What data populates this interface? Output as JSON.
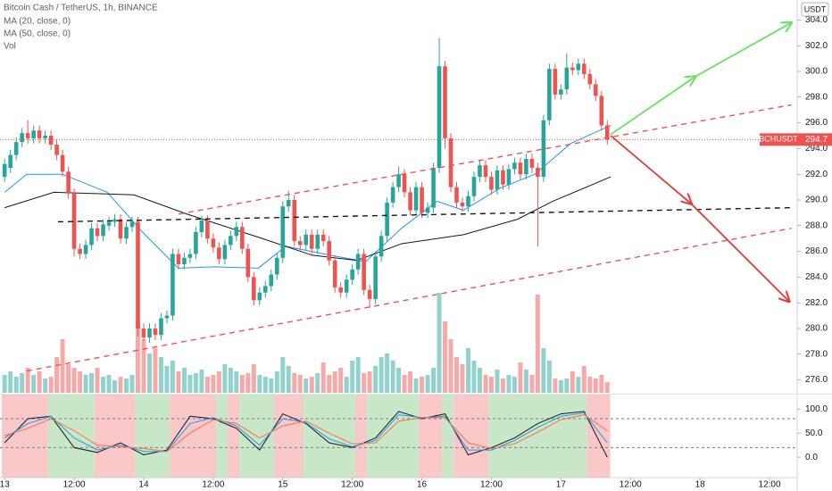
{
  "chart_data": {
    "type": "candlestick",
    "title": "Bitcoin Cash / TetherUS, 1h, BINANCE",
    "currency": "USDT",
    "symbol_label": "BCHUSDT",
    "last_price": 294.7,
    "volume_label": "Vol",
    "up_color": "#26a69a",
    "down_color": "#ef5350",
    "xlim": [
      -0.8,
      136
    ],
    "ylim": [
      275,
      305
    ],
    "vlim": [
      0,
      100
    ],
    "xticks": [
      {
        "value": 0,
        "label": "13"
      },
      {
        "value": 12,
        "label": "12:00"
      },
      {
        "value": 24,
        "label": "14"
      },
      {
        "value": 36,
        "label": "12:00"
      },
      {
        "value": 48,
        "label": "15"
      },
      {
        "value": 60,
        "label": "12:00"
      },
      {
        "value": 72,
        "label": "16"
      },
      {
        "value": 84,
        "label": "12:00"
      },
      {
        "value": 96,
        "label": "17"
      },
      {
        "value": 108,
        "label": "12:00"
      },
      {
        "value": 120,
        "label": "18"
      },
      {
        "value": 132,
        "label": "12:00"
      }
    ],
    "yticks": [
      {
        "value": 276,
        "label": "276.0"
      },
      {
        "value": 278,
        "label": "278.0"
      },
      {
        "value": 280,
        "label": "280.0"
      },
      {
        "value": 282,
        "label": "282.0"
      },
      {
        "value": 284,
        "label": "284.0"
      },
      {
        "value": 286,
        "label": "286.0"
      },
      {
        "value": 288,
        "label": "288.0"
      },
      {
        "value": 290,
        "label": "290.0"
      },
      {
        "value": 292,
        "label": "292.0"
      },
      {
        "value": 294,
        "label": "294.0"
      },
      {
        "value": 296,
        "label": "296.0"
      },
      {
        "value": 298,
        "label": "298.0"
      },
      {
        "value": 300,
        "label": "300.0"
      },
      {
        "value": 302,
        "label": "302.0"
      },
      {
        "value": 304,
        "label": "304.0"
      }
    ],
    "open": [
      291.8,
      292.5,
      293.5,
      294.5,
      295.2,
      294.8,
      295.4,
      294.8,
      295.0,
      294.3,
      293.5,
      292.2,
      290.5,
      286.2,
      285.8,
      286.5,
      287.8,
      287.2,
      288.0,
      288.3,
      288.5,
      287.0,
      287.9,
      288.3,
      280.0,
      279.3,
      280.0,
      279.5,
      280.8,
      281.0,
      285.8,
      285.0,
      285.5,
      285.8,
      287.5,
      288.4,
      287.0,
      286.3,
      285.4,
      286.5,
      287.2,
      287.9,
      286.2,
      284.0,
      282.2,
      282.8,
      283.3,
      284.2,
      285.5,
      289.5,
      290.0,
      286.8,
      286.5,
      287.3,
      286.2,
      287.3,
      286.8,
      285.3,
      283.2,
      282.8,
      283.8,
      284.6,
      285.8,
      283.0,
      282.3,
      285.6,
      287.2,
      289.8,
      291.0,
      292.0,
      290.6,
      289.2,
      291.0,
      289.0,
      289.4,
      292.5,
      300.4,
      294.8,
      291.0,
      289.8,
      289.5,
      290.3,
      291.8,
      292.7,
      291.8,
      290.8,
      292.3,
      291.2,
      292.4,
      292.9,
      292.0,
      293.2,
      292.5,
      291.8,
      296.2,
      300.2,
      298.2,
      298.6,
      300.3,
      300.1,
      300.6,
      299.8,
      299.0,
      298.1,
      295.8
    ],
    "high": [
      293.2,
      293.9,
      294.9,
      295.6,
      296.2,
      295.8,
      295.8,
      295.4,
      295.4,
      294.7,
      293.9,
      292.6,
      290.9,
      286.6,
      286.9,
      288.2,
      288.2,
      288.5,
      288.7,
      288.9,
      288.9,
      288.3,
      288.7,
      288.7,
      280.4,
      280.4,
      280.4,
      281.2,
      281.4,
      286.2,
      286.2,
      285.9,
      286.2,
      287.9,
      288.8,
      288.8,
      287.4,
      286.7,
      286.9,
      287.6,
      288.3,
      288.3,
      286.6,
      284.4,
      283.2,
      283.7,
      284.6,
      285.9,
      289.9,
      290.7,
      290.4,
      287.2,
      287.7,
      287.7,
      287.7,
      287.7,
      287.2,
      285.7,
      283.6,
      284.2,
      285.0,
      286.2,
      286.2,
      283.4,
      286.0,
      287.6,
      290.2,
      291.4,
      292.6,
      292.4,
      291.0,
      291.4,
      291.4,
      289.8,
      292.9,
      302.6,
      300.8,
      295.2,
      291.4,
      290.2,
      290.7,
      292.2,
      293.1,
      293.1,
      292.2,
      292.7,
      292.7,
      292.8,
      293.3,
      293.3,
      293.6,
      293.6,
      292.9,
      296.6,
      300.6,
      300.6,
      299.0,
      301.4,
      300.7,
      301.0,
      301.0,
      300.2,
      299.4,
      298.5,
      296.2
    ],
    "low": [
      291.4,
      292.1,
      293.1,
      294.1,
      294.4,
      294.4,
      294.4,
      294.4,
      293.9,
      293.1,
      291.8,
      290.1,
      285.6,
      285.4,
      285.4,
      286.1,
      286.8,
      286.8,
      287.6,
      287.9,
      286.6,
      286.6,
      287.5,
      279.4,
      279.0,
      278.9,
      279.1,
      279.1,
      280.4,
      280.6,
      284.6,
      284.6,
      285.1,
      285.4,
      287.1,
      286.6,
      285.9,
      285.0,
      285.0,
      286.1,
      286.8,
      285.8,
      283.6,
      281.8,
      281.8,
      282.4,
      282.9,
      283.8,
      285.1,
      289.1,
      286.4,
      286.1,
      286.1,
      285.8,
      285.8,
      286.4,
      284.9,
      282.8,
      282.4,
      282.4,
      283.4,
      284.2,
      282.6,
      281.6,
      281.9,
      285.2,
      286.8,
      289.4,
      290.6,
      290.2,
      288.8,
      288.8,
      288.6,
      288.6,
      289.0,
      292.1,
      294.0,
      290.6,
      289.4,
      289.1,
      289.1,
      289.9,
      291.4,
      291.4,
      290.4,
      290.4,
      290.8,
      290.8,
      292.0,
      291.6,
      291.6,
      292.1,
      286.4,
      291.4,
      295.8,
      297.8,
      297.8,
      298.2,
      299.7,
      299.7,
      299.4,
      298.6,
      297.7,
      295.4,
      294.3
    ],
    "close": [
      292.8,
      293.5,
      294.5,
      295.2,
      294.8,
      295.4,
      294.8,
      295.0,
      294.3,
      293.5,
      292.2,
      290.5,
      286.2,
      285.8,
      286.5,
      287.8,
      287.2,
      288.1,
      288.3,
      288.5,
      287.0,
      287.9,
      288.3,
      280.0,
      279.3,
      280.0,
      279.5,
      280.8,
      281.0,
      285.8,
      285.0,
      285.5,
      285.8,
      287.5,
      288.4,
      287.0,
      286.3,
      285.4,
      286.5,
      287.2,
      287.9,
      286.2,
      284.0,
      282.2,
      282.8,
      283.3,
      284.2,
      285.5,
      289.5,
      290.0,
      286.8,
      286.5,
      287.3,
      286.2,
      287.3,
      286.8,
      285.3,
      283.2,
      282.8,
      283.8,
      284.6,
      285.8,
      283.0,
      282.3,
      285.6,
      287.2,
      289.8,
      291.0,
      292.0,
      290.6,
      289.2,
      291.0,
      289.0,
      289.4,
      292.5,
      300.4,
      294.8,
      291.0,
      289.8,
      289.5,
      290.3,
      291.8,
      292.7,
      291.8,
      290.8,
      292.3,
      291.2,
      292.4,
      292.9,
      292.0,
      293.2,
      292.5,
      291.8,
      296.2,
      300.2,
      298.2,
      298.6,
      300.3,
      300.1,
      300.6,
      299.8,
      299.0,
      298.1,
      295.8,
      294.7
    ],
    "volume": [
      10,
      12,
      9,
      11,
      14,
      10,
      12,
      8,
      9,
      20,
      30,
      16,
      14,
      12,
      10,
      11,
      14,
      9,
      10,
      7,
      9,
      8,
      10,
      40,
      30,
      22,
      25,
      20,
      15,
      18,
      12,
      14,
      10,
      11,
      13,
      9,
      10,
      12,
      16,
      14,
      12,
      10,
      11,
      16,
      10,
      9,
      8,
      12,
      20,
      15,
      11,
      10,
      8,
      9,
      11,
      17,
      10,
      12,
      14,
      9,
      18,
      20,
      11,
      12,
      15,
      20,
      22,
      18,
      14,
      10,
      12,
      8,
      9,
      10,
      14,
      56,
      40,
      30,
      20,
      16,
      25,
      18,
      14,
      10,
      9,
      13,
      8,
      10,
      9,
      17,
      13,
      10,
      55,
      25,
      18,
      8,
      7,
      8,
      12,
      9,
      15,
      9,
      8,
      10,
      6
    ],
    "series": [
      {
        "name": "MA (20, close, 0)",
        "color": "#2196f3",
        "x": [
          0,
          3.8,
          10,
          17.7,
          23.8,
          30,
          36.2,
          43.8,
          48.5,
          56.2,
          62.3,
          68.5,
          74.6,
          79.2,
          85.4,
          91.5,
          97.7,
          104.6
        ],
        "values": [
          290.6,
          292,
          292,
          290.6,
          287.5,
          284.7,
          284.8,
          284.7,
          286.4,
          285.7,
          285.2,
          287.8,
          289.9,
          289.2,
          290.9,
          292,
          294.4,
          295.8
        ]
      },
      {
        "name": "MA (50, close, 0)",
        "color": "#131722",
        "x": [
          0,
          8.5,
          22.3,
          31.5,
          43.8,
          53.1,
          60.8,
          68.5,
          79.2,
          88.5,
          94.6,
          104.6
        ],
        "values": [
          289.4,
          290.6,
          290.4,
          288.9,
          287.1,
          285.7,
          285.3,
          286.6,
          287.3,
          288.5,
          289.9,
          291.8
        ]
      }
    ],
    "drawings": [
      {
        "color": "#ef5350",
        "dash": true,
        "x": [
          30,
          135.8
        ],
        "values": [
          288.9,
          297.4
        ]
      },
      {
        "color": "#ef5350",
        "dash": true,
        "x": [
          3.8,
          135.8
        ],
        "values": [
          276.7,
          287.8
        ]
      },
      {
        "color": "#131722",
        "dash": true,
        "x": [
          9.2,
          135.8
        ],
        "values": [
          288.3,
          289.4
        ]
      },
      {
        "color": "#66e35e",
        "dash": false,
        "arrow": true,
        "x": [
          104.6,
          119.2,
          135.8
        ],
        "values": [
          295.1,
          299.6,
          303.8
        ]
      },
      {
        "color": "#e53935",
        "dash": false,
        "arrow": true,
        "x": [
          104.6,
          118.5,
          135.4
        ],
        "values": [
          295.0,
          289.7,
          282.1
        ]
      }
    ],
    "oscillator": {
      "ylim": [
        -40,
        130
      ],
      "yticks": [
        {
          "value": 100,
          "label": "100.0"
        },
        {
          "value": 50,
          "label": "50.0"
        },
        {
          "value": 0,
          "label": "0.0"
        }
      ],
      "bands": [
        80,
        20
      ],
      "zones": [
        {
          "start": -0.5,
          "end": 7.5,
          "color": "#f7b6b6"
        },
        {
          "start": 7.5,
          "end": 15.5,
          "color": "#b5dfb3"
        },
        {
          "start": 15.5,
          "end": 22.5,
          "color": "#f7b6b6"
        },
        {
          "start": 22.5,
          "end": 28.5,
          "color": "#b5dfb3"
        },
        {
          "start": 28.5,
          "end": 36.5,
          "color": "#f7b6b6"
        },
        {
          "start": 36.5,
          "end": 38.5,
          "color": "#b5dfb3"
        },
        {
          "start": 38.5,
          "end": 40.5,
          "color": "#f7b6b6"
        },
        {
          "start": 40.5,
          "end": 46.5,
          "color": "#b5dfb3"
        },
        {
          "start": 46.5,
          "end": 51.5,
          "color": "#f7b6b6"
        },
        {
          "start": 51.5,
          "end": 60.5,
          "color": "#b5dfb3"
        },
        {
          "start": 60.5,
          "end": 62.5,
          "color": "#f7b6b6"
        },
        {
          "start": 62.5,
          "end": 71.5,
          "color": "#b5dfb3"
        },
        {
          "start": 71.5,
          "end": 75.5,
          "color": "#f7b6b6"
        },
        {
          "start": 75.5,
          "end": 77.5,
          "color": "#b5dfb3"
        },
        {
          "start": 77.5,
          "end": 83.5,
          "color": "#f7b6b6"
        },
        {
          "start": 83.5,
          "end": 100.5,
          "color": "#b5dfb3"
        },
        {
          "start": 100.5,
          "end": 104.5,
          "color": "#f7b6b6"
        }
      ],
      "x": [
        0,
        4,
        8,
        12,
        16,
        20,
        24,
        28,
        32,
        36,
        40,
        44,
        48,
        52,
        56,
        60,
        64,
        68,
        72,
        76,
        80,
        84,
        88,
        92,
        96,
        100,
        104
      ],
      "series": [
        {
          "color": "#131722",
          "values": [
            30,
            80,
            85,
            20,
            10,
            30,
            5,
            15,
            85,
            80,
            60,
            15,
            90,
            70,
            30,
            20,
            40,
            95,
            80,
            90,
            5,
            20,
            40,
            70,
            90,
            95,
            0
          ]
        },
        {
          "color": "#2196f3",
          "values": [
            40,
            70,
            85,
            40,
            15,
            25,
            12,
            12,
            70,
            82,
            65,
            25,
            80,
            72,
            38,
            22,
            35,
            88,
            82,
            85,
            15,
            15,
            35,
            62,
            85,
            92,
            30
          ]
        },
        {
          "color": "#ff7043",
          "values": [
            45,
            60,
            80,
            55,
            25,
            22,
            18,
            12,
            50,
            78,
            70,
            40,
            65,
            75,
            50,
            28,
            30,
            75,
            82,
            82,
            30,
            18,
            28,
            52,
            78,
            88,
            55
          ]
        }
      ]
    }
  }
}
